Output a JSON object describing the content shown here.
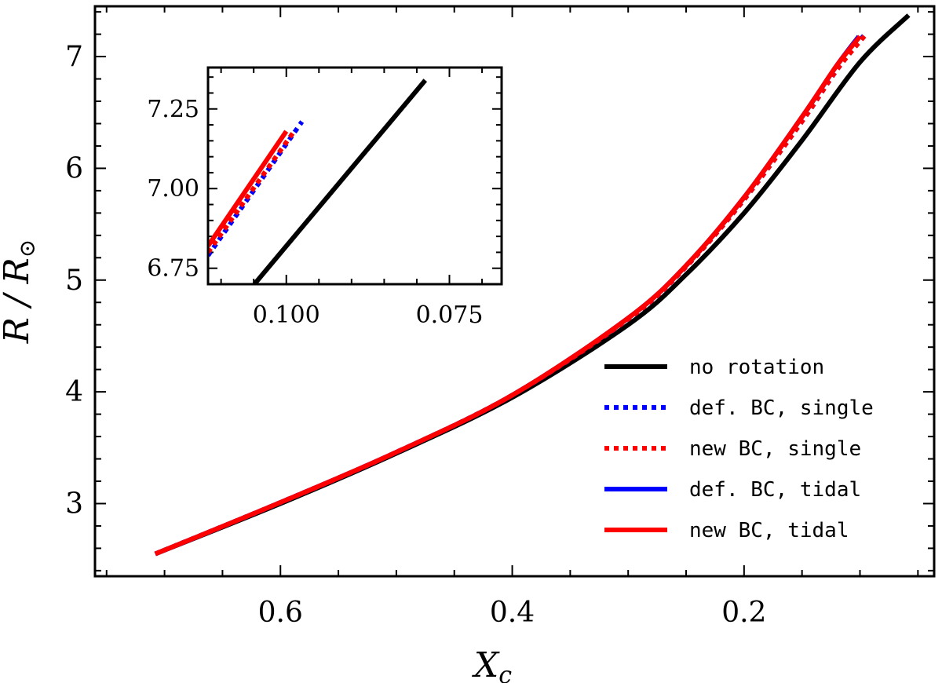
{
  "chart_data": {
    "type": "line",
    "xlabel": "X",
    "xlabel_sub": "c",
    "ylabel": "R / R",
    "ylabel_sub": "⊙",
    "x_reversed": true,
    "xlim": [
      0.76,
      0.036
    ],
    "ylim": [
      2.35,
      7.45
    ],
    "x_ticks": [
      {
        "value": 0.6,
        "label": "0.6"
      },
      {
        "value": 0.4,
        "label": "0.4"
      },
      {
        "value": 0.2,
        "label": "0.2"
      }
    ],
    "y_ticks": [
      {
        "value": 3,
        "label": "3"
      },
      {
        "value": 4,
        "label": "4"
      },
      {
        "value": 5,
        "label": "5"
      },
      {
        "value": 6,
        "label": "6"
      },
      {
        "value": 7,
        "label": "7"
      }
    ],
    "series": [
      {
        "name": "no rotation",
        "color": "#000000",
        "style": "solid",
        "x": [
          0.708,
          0.6,
          0.5,
          0.4,
          0.3,
          0.25,
          0.2,
          0.15,
          0.1,
          0.058
        ],
        "y": [
          2.55,
          3.0,
          3.45,
          3.95,
          4.6,
          5.05,
          5.6,
          6.25,
          6.95,
          7.37
        ]
      },
      {
        "name": "def. BC, single",
        "color": "#0000ff",
        "style": "dotted",
        "x": [
          0.708,
          0.6,
          0.5,
          0.4,
          0.3,
          0.25,
          0.2,
          0.15,
          0.12,
          0.095
        ],
        "y": [
          2.55,
          3.01,
          3.46,
          3.97,
          4.65,
          5.12,
          5.72,
          6.42,
          6.88,
          7.21
        ]
      },
      {
        "name": "new BC, single",
        "color": "#ff0000",
        "style": "dotted",
        "x": [
          0.708,
          0.6,
          0.5,
          0.4,
          0.3,
          0.25,
          0.2,
          0.15,
          0.12,
          0.094
        ],
        "y": [
          2.55,
          3.01,
          3.46,
          3.97,
          4.65,
          5.12,
          5.72,
          6.42,
          6.88,
          7.21
        ]
      },
      {
        "name": "def. BC, tidal",
        "color": "#0000ff",
        "style": "solid",
        "x": [
          0.708,
          0.6,
          0.5,
          0.4,
          0.3,
          0.25,
          0.2,
          0.15,
          0.12,
          0.101
        ],
        "y": [
          2.55,
          3.01,
          3.46,
          3.97,
          4.66,
          5.13,
          5.74,
          6.46,
          6.92,
          7.18
        ]
      },
      {
        "name": "new BC, tidal",
        "color": "#ff0000",
        "style": "solid",
        "x": [
          0.708,
          0.6,
          0.5,
          0.4,
          0.3,
          0.25,
          0.2,
          0.15,
          0.12,
          0.1
        ],
        "y": [
          2.55,
          3.01,
          3.46,
          3.97,
          4.66,
          5.13,
          5.74,
          6.46,
          6.92,
          7.18
        ]
      }
    ],
    "inset": {
      "xlim": [
        0.112,
        0.067
      ],
      "ylim": [
        6.7,
        7.38
      ],
      "x_ticks": [
        {
          "value": 0.1,
          "label": "0.100"
        },
        {
          "value": 0.075,
          "label": "0.075"
        }
      ],
      "y_ticks": [
        {
          "value": 6.75,
          "label": "6.75"
        },
        {
          "value": 7.0,
          "label": "7.00"
        },
        {
          "value": 7.25,
          "label": "7.25"
        }
      ],
      "series": [
        {
          "name": "no rotation",
          "color": "#000000",
          "style": "solid",
          "x": [
            0.1049,
            0.0787
          ],
          "y": [
            6.7,
            7.34
          ]
        },
        {
          "name": "def. BC, single",
          "color": "#0000ff",
          "style": "dotted",
          "x": [
            0.112,
            0.0976
          ],
          "y": [
            6.79,
            7.21
          ]
        },
        {
          "name": "new BC, single",
          "color": "#ff0000",
          "style": "dotted",
          "x": [
            0.112,
            0.0988
          ],
          "y": [
            6.8,
            7.18
          ]
        },
        {
          "name": "new BC, tidal",
          "color": "#ff0000",
          "style": "solid",
          "x": [
            0.112,
            0.1
          ],
          "y": [
            6.82,
            7.18
          ]
        }
      ]
    },
    "legend": {
      "position": "lower-right",
      "entries": [
        {
          "label": "no rotation",
          "color": "#000000",
          "style": "solid"
        },
        {
          "label": "def. BC, single",
          "color": "#0000ff",
          "style": "dotted"
        },
        {
          "label": "new BC, single",
          "color": "#ff0000",
          "style": "dotted"
        },
        {
          "label": "def. BC, tidal",
          "color": "#0000ff",
          "style": "solid"
        },
        {
          "label": "new BC, tidal",
          "color": "#ff0000",
          "style": "solid"
        }
      ]
    }
  }
}
